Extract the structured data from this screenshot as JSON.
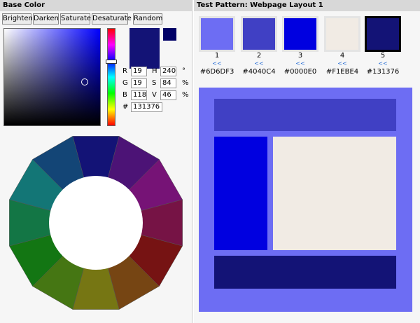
{
  "left": {
    "title": "Base Color",
    "buttons": [
      "Brighten",
      "Darken",
      "Saturate",
      "Desaturate",
      "Random"
    ],
    "fields": [
      {
        "label": "R",
        "value": 19
      },
      {
        "label": "H",
        "value": 240,
        "unit": "°"
      },
      {
        "label": "G",
        "value": 19
      },
      {
        "label": "S",
        "value": 84,
        "unit": "%"
      },
      {
        "label": "B",
        "value": 118
      },
      {
        "label": "V",
        "value": 46,
        "unit": "%"
      }
    ],
    "hex_label": "#",
    "hex": "131376"
  },
  "right": {
    "title": "Test Pattern: Webpage Layout 1",
    "swatches": [
      {
        "number": 1,
        "link": "<<",
        "hex": "#6D6DF3"
      },
      {
        "number": 2,
        "link": "<<",
        "hex": "#4040C4"
      },
      {
        "number": 3,
        "link": "<<",
        "hex": "#0000E0"
      },
      {
        "number": 4,
        "link": "<<",
        "hex": "#F1EBE4"
      },
      {
        "number": 5,
        "link": "<<",
        "hex": "#131376"
      }
    ]
  }
}
